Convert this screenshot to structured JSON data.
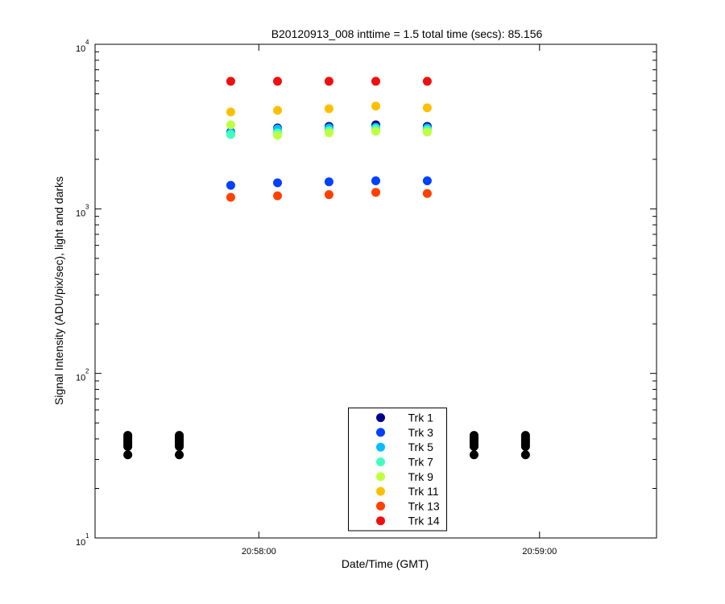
{
  "chart_data": {
    "type": "scatter",
    "title": "B20120913_008 inttime = 1.5 total time (secs): 85.156",
    "xlabel": "Date/Time (GMT)",
    "ylabel": "Signal Intensity (ADU/pix/sec), light and darks",
    "log_y": true,
    "xlim": [
      "20:57:25",
      "20:59:25"
    ],
    "xticks": [
      "20:58:00",
      "20:59:00"
    ],
    "ylim": [
      10,
      10000
    ],
    "yticks": [
      {
        "value": 10,
        "label": "10",
        "exponent": "1"
      },
      {
        "value": 100,
        "label": "10",
        "exponent": "2"
      },
      {
        "value": 1000,
        "label": "10",
        "exponent": "3"
      },
      {
        "value": 10000,
        "label": "10",
        "exponent": "4"
      }
    ],
    "yminorticks": [
      20,
      30,
      40,
      50,
      60,
      70,
      80,
      90,
      200,
      300,
      400,
      500,
      600,
      700,
      800,
      900,
      2000,
      3000,
      4000,
      5000,
      6000,
      7000,
      8000,
      9000
    ],
    "legend": "bottom-center",
    "x": [
      "20:57:54",
      "20:58:04",
      "20:58:15",
      "20:58:25",
      "20:58:36"
    ],
    "series": [
      {
        "name": "Trk 1",
        "color": "#00008f",
        "values": [
          2930,
          3100,
          3170,
          3240,
          3170
        ]
      },
      {
        "name": "Trk 3",
        "color": "#0040ff",
        "values": [
          1390,
          1440,
          1460,
          1480,
          1480
        ]
      },
      {
        "name": "Trk 5",
        "color": "#00bfff",
        "values": [
          2900,
          3060,
          3100,
          3130,
          3100
        ]
      },
      {
        "name": "Trk 7",
        "color": "#40ffbf",
        "values": [
          2830,
          2900,
          2990,
          3060,
          3020
        ]
      },
      {
        "name": "Trk 9",
        "color": "#bfff40",
        "values": [
          3240,
          2800,
          2900,
          2960,
          2930
        ]
      },
      {
        "name": "Trk 11",
        "color": "#ffbf00",
        "values": [
          3880,
          3970,
          4060,
          4210,
          4110
        ]
      },
      {
        "name": "Trk 13",
        "color": "#ff4000",
        "values": [
          1175,
          1200,
          1220,
          1260,
          1240
        ]
      },
      {
        "name": "Trk 14",
        "color": "#ee1010",
        "values": [
          5960,
          5960,
          5960,
          5960,
          5960
        ]
      }
    ],
    "darks": {
      "color": "#000000",
      "x": [
        "20:57:32",
        "20:57:32",
        "20:57:32",
        "20:57:32",
        "20:57:32",
        "20:57:32",
        "20:57:32",
        "20:57:32",
        "20:57:43",
        "20:57:43",
        "20:57:43",
        "20:57:43",
        "20:57:43",
        "20:57:43",
        "20:57:43",
        "20:57:43",
        "20:58:46",
        "20:58:46",
        "20:58:46",
        "20:58:46",
        "20:58:46",
        "20:58:46",
        "20:58:46",
        "20:58:46",
        "20:58:57",
        "20:58:57",
        "20:58:57",
        "20:58:57",
        "20:58:57",
        "20:58:57",
        "20:58:57",
        "20:58:57"
      ],
      "values": [
        32,
        36,
        37,
        38,
        39,
        40,
        41,
        42,
        32,
        36,
        37,
        38,
        39,
        40,
        41,
        42,
        32,
        36,
        37,
        38,
        39,
        40,
        41,
        42,
        32,
        36,
        37,
        38,
        39,
        40,
        41,
        42
      ]
    }
  }
}
